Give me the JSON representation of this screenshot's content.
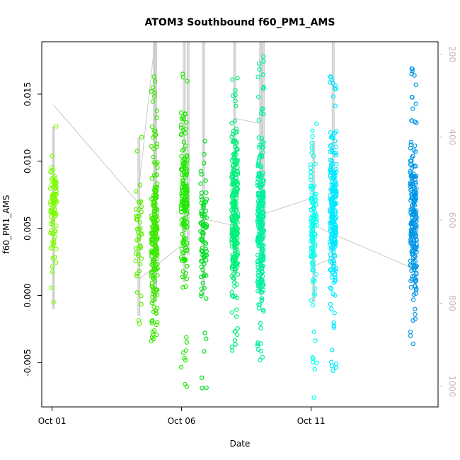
{
  "chart_data": {
    "type": "scatter",
    "title": "ATOM3 Southbound f60_PM1_AMS",
    "xlabel": "Date",
    "ylabel": "f60_PM1_AMS",
    "x_ticks": [
      "Oct 01",
      "Oct 06",
      "Oct 11"
    ],
    "x_tick_days": [
      1,
      6,
      11
    ],
    "xlim": [
      0.6,
      15.9
    ],
    "ylim": [
      -0.0083,
      0.0189
    ],
    "y_ticks": [
      -0.005,
      0.0,
      0.005,
      0.01,
      0.015
    ],
    "y_tick_labels": [
      "-0.005",
      "0.000",
      "0.005",
      "0.010",
      "0.015"
    ],
    "secondary_axis": {
      "ticks": [
        200,
        400,
        600,
        800,
        1000
      ],
      "tick_labels": [
        "200",
        "400",
        "600",
        "800",
        "1000"
      ],
      "range_top_to_bottom": [
        170,
        1050
      ],
      "reversed": true
    },
    "colors": {
      "point_colors_by_day": [
        "#7CFC00",
        "#3CFC10",
        "#00E840",
        "#00F07A",
        "#00FFD8",
        "#00C8FF",
        "#0096E6"
      ],
      "track": "#c8c8c8"
    },
    "grid": false,
    "legend": "none",
    "clusters": [
      {
        "day": 1.05,
        "n": 90,
        "ymin": -0.0005,
        "ymax": 0.0126,
        "center": 0.0065,
        "color": "#7CFC00"
      },
      {
        "day": 4.35,
        "n": 45,
        "ymin": -0.0021,
        "ymax": 0.0118,
        "center": 0.004,
        "color": "#5CF000"
      },
      {
        "day": 4.95,
        "n": 220,
        "ymin": -0.0034,
        "ymax": 0.0163,
        "center": 0.0045,
        "color": "#3CE800"
      },
      {
        "day": 6.1,
        "n": 160,
        "ymin": -0.0068,
        "ymax": 0.0165,
        "center": 0.0065,
        "color": "#20E800"
      },
      {
        "day": 6.85,
        "n": 85,
        "ymin": -0.0069,
        "ymax": 0.0115,
        "center": 0.0045,
        "color": "#00E020"
      },
      {
        "day": 8.05,
        "n": 260,
        "ymin": -0.0041,
        "ymax": 0.0162,
        "center": 0.0062,
        "color": "#00F07A"
      },
      {
        "day": 9.05,
        "n": 260,
        "ymin": -0.0048,
        "ymax": 0.0178,
        "center": 0.0055,
        "color": "#00F0A0"
      },
      {
        "day": 11.1,
        "n": 120,
        "ymin": -0.0076,
        "ymax": 0.0128,
        "center": 0.0055,
        "color": "#00FFEE"
      },
      {
        "day": 11.85,
        "n": 230,
        "ymin": -0.0056,
        "ymax": 0.0163,
        "center": 0.0062,
        "color": "#00E8FF"
      },
      {
        "day": 14.95,
        "n": 210,
        "ymin": -0.0036,
        "ymax": 0.0169,
        "center": 0.0055,
        "color": "#0096E6"
      }
    ],
    "track_lines": [
      [
        [
          1.05,
          0.0142
        ],
        [
          4.5,
          0.0065
        ]
      ],
      [
        [
          4.35,
          0.0012
        ],
        [
          6.1,
          0.0039
        ]
      ],
      [
        [
          4.35,
          0.008
        ],
        [
          4.95,
          0.0186
        ]
      ],
      [
        [
          6.85,
          0.0057
        ],
        [
          8.05,
          0.0052
        ]
      ],
      [
        [
          8.05,
          0.0132
        ],
        [
          9.05,
          0.0128
        ]
      ],
      [
        [
          9.05,
          0.006
        ],
        [
          11.1,
          0.0073
        ]
      ],
      [
        [
          11.1,
          0.0052
        ],
        [
          14.95,
          0.002
        ]
      ],
      [
        [
          11.1,
          0.0022
        ],
        [
          11.85,
          0.0028
        ]
      ]
    ],
    "track_verticals": [
      {
        "day": 1.05,
        "ymin": -0.001,
        "ymax": 0.0126
      },
      {
        "day": 4.35,
        "ymin": -0.0015,
        "ymax": 0.0118
      },
      {
        "day": 4.95,
        "ymin": -0.0005,
        "ymax": 0.0189
      },
      {
        "day": 5.0,
        "ymin": 0.0,
        "ymax": 0.0189
      },
      {
        "day": 6.1,
        "ymin": 0.001,
        "ymax": 0.0189
      },
      {
        "day": 6.25,
        "ymin": 0.003,
        "ymax": 0.0189
      },
      {
        "day": 6.85,
        "ymin": 0.0,
        "ymax": 0.0189
      },
      {
        "day": 8.05,
        "ymin": 0.001,
        "ymax": 0.0189
      },
      {
        "day": 9.05,
        "ymin": 0.0,
        "ymax": 0.0189
      },
      {
        "day": 9.15,
        "ymin": 0.004,
        "ymax": 0.0189
      },
      {
        "day": 11.1,
        "ymin": -0.0005,
        "ymax": 0.0115
      },
      {
        "day": 11.85,
        "ymin": 0.002,
        "ymax": 0.0189
      }
    ]
  }
}
